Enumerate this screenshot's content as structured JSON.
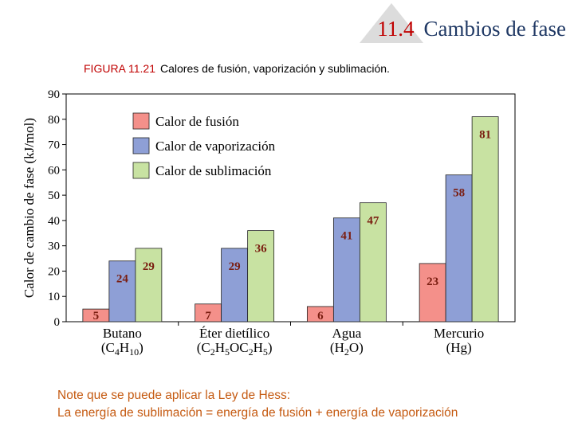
{
  "header": {
    "section_number": "11.4",
    "section_title": "Cambios de fase"
  },
  "figure": {
    "label": "FIGURA 11.21",
    "caption": "Calores de fusión, vaporización y sublimación."
  },
  "chart_data": {
    "type": "bar",
    "ylabel": "Calor de cambio de fase (kJ/mol)",
    "ylim": [
      0,
      90
    ],
    "yticks": [
      0,
      10,
      20,
      30,
      40,
      50,
      60,
      70,
      80,
      90
    ],
    "grid": false,
    "legend_position": "top-left",
    "categories": [
      {
        "name": "Butano",
        "formula_parts": [
          [
            "(C",
            ""
          ],
          [
            "4",
            "sub"
          ],
          [
            "H",
            ""
          ],
          [
            "10",
            "sub"
          ],
          [
            ")",
            ""
          ]
        ]
      },
      {
        "name": "Éter dietílico",
        "formula_parts": [
          [
            "(C",
            ""
          ],
          [
            "2",
            "sub"
          ],
          [
            "H",
            ""
          ],
          [
            "5",
            "sub"
          ],
          [
            "OC",
            ""
          ],
          [
            "2",
            "sub"
          ],
          [
            "H",
            ""
          ],
          [
            "5",
            "sub"
          ],
          [
            ")",
            ""
          ]
        ]
      },
      {
        "name": "Agua",
        "formula_parts": [
          [
            "(H",
            ""
          ],
          [
            "2",
            "sub"
          ],
          [
            "O)",
            ""
          ]
        ]
      },
      {
        "name": "Mercurio",
        "formula_parts": [
          [
            "(Hg)",
            ""
          ]
        ]
      }
    ],
    "series": [
      {
        "name": "Calor de fusión",
        "color": "#f4908a",
        "values": [
          5,
          7,
          6,
          23
        ]
      },
      {
        "name": "Calor de vaporización",
        "color": "#8e9fd6",
        "values": [
          24,
          29,
          41,
          58
        ]
      },
      {
        "name": "Calor de sublimación",
        "color": "#c8e2a2",
        "values": [
          29,
          36,
          47,
          81
        ]
      }
    ],
    "label_color": "#7a1d10"
  },
  "note": {
    "line1": "Note que se puede aplicar la Ley de Hess:",
    "line2": "La energía de sublimación = energía de fusión + energía de vaporización"
  }
}
